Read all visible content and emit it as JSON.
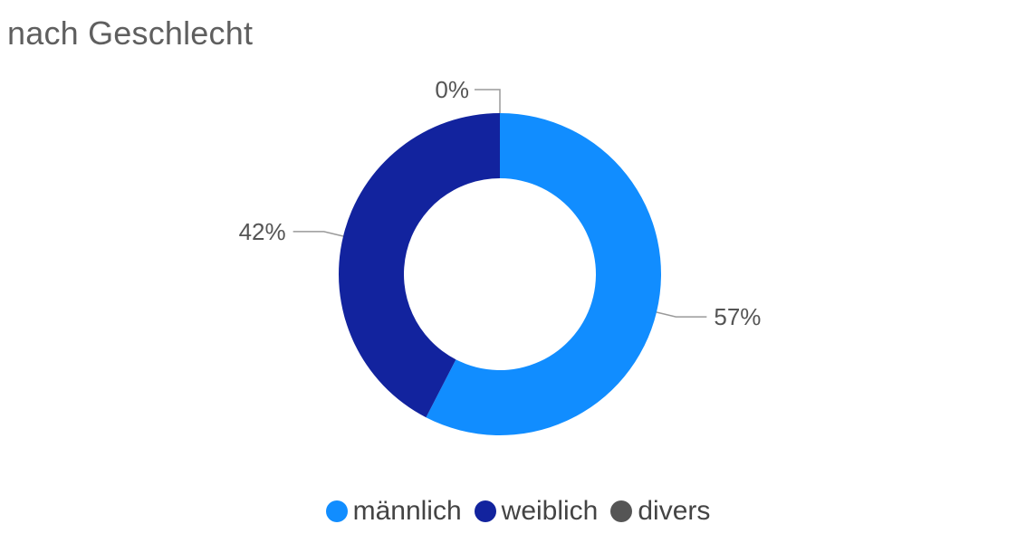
{
  "chart_data": {
    "type": "pie",
    "title": "nach Geschlecht",
    "categories": [
      "männlich",
      "weiblich",
      "divers"
    ],
    "values": [
      57,
      42,
      0
    ],
    "value_labels": [
      "57%",
      "42%",
      "0%"
    ],
    "colors": [
      "#118dff",
      "#12239e",
      "#555555"
    ],
    "legend_position": "bottom-center",
    "donut": true
  }
}
